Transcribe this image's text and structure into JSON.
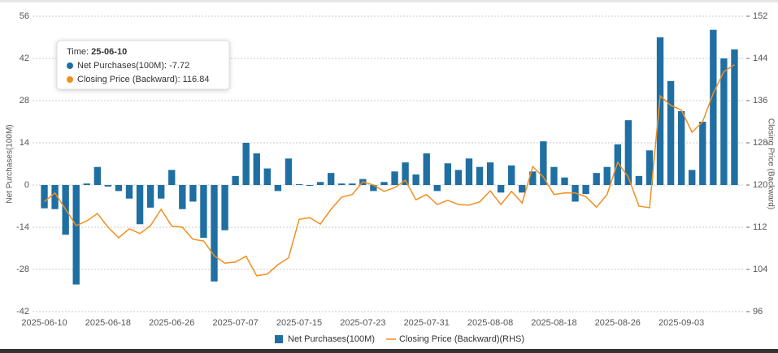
{
  "chart_data": {
    "type": "bar_line",
    "y_label": "Net Purchases(100M)",
    "y2_label": "Closing Price (Backward)",
    "categories": [
      "2025-06-10",
      null,
      null,
      null,
      null,
      null,
      "2025-06-18",
      null,
      null,
      null,
      null,
      null,
      "2025-06-26",
      null,
      null,
      null,
      null,
      null,
      "2025-07-07",
      null,
      null,
      null,
      null,
      null,
      "2025-07-15",
      null,
      null,
      null,
      null,
      null,
      "2025-07-23",
      null,
      null,
      null,
      null,
      null,
      "2025-07-31",
      null,
      null,
      null,
      null,
      null,
      "2025-08-08",
      null,
      null,
      null,
      null,
      null,
      "2025-08-18",
      null,
      null,
      null,
      null,
      null,
      "2025-08-26",
      null,
      null,
      null,
      null,
      null,
      "2025-09-03",
      null,
      null,
      null,
      null,
      null
    ],
    "series": [
      {
        "name": "Net Purchases(100M)",
        "type": "bar",
        "color": "#1f6fa3",
        "values": [
          -7.72,
          -8,
          -16.5,
          -33,
          0.5,
          6,
          -0.5,
          -2,
          -4.5,
          -13,
          -7.5,
          -4.5,
          5,
          -8,
          -5.5,
          -17.5,
          -32,
          -15,
          3,
          14,
          10.5,
          5.5,
          -2,
          8.8,
          0.3,
          -0.3,
          1,
          4,
          0.5,
          0.5,
          2,
          -2,
          1,
          4.5,
          7.5,
          3.5,
          10.5,
          -2,
          7.2,
          5,
          8.8,
          6,
          7.5,
          -2.5,
          6.5,
          -2.5,
          4.5,
          14.5,
          6,
          2.5,
          -5.5,
          -3,
          4,
          6,
          13.5,
          21.5,
          3,
          11.5,
          49,
          34.5,
          24.5,
          5,
          21,
          51.5,
          42,
          45
        ]
      },
      {
        "name": "Closing Price (Backward)(RHS)",
        "type": "line",
        "axis": "y2",
        "color": "#f28e1c",
        "values": [
          116.84,
          118.5,
          115.4,
          112.3,
          113.2,
          114.6,
          112,
          110,
          111.7,
          110.8,
          112.3,
          115.4,
          112.2,
          112,
          109.7,
          109.4,
          106.6,
          105.2,
          105.4,
          106.5,
          102.8,
          103.1,
          104.9,
          106.2,
          113.5,
          113.8,
          112.6,
          115.4,
          117.7,
          118.2,
          120.6,
          120,
          118.8,
          119.5,
          120.9,
          117.2,
          118.2,
          116.3,
          117.1,
          116.3,
          116.2,
          116.8,
          118.9,
          116.3,
          118.8,
          116.6,
          123.5,
          121.5,
          118.2,
          118.5,
          118.5,
          117.8,
          115.8,
          118.2,
          124.3,
          121.5,
          116,
          115.7,
          136.9,
          135.1,
          134.2,
          130,
          132,
          137.4,
          141.5,
          142.8
        ]
      }
    ],
    "ylim": [
      -42,
      56
    ],
    "yticks": [
      -42,
      -28,
      -14,
      0,
      14,
      28,
      42,
      56
    ],
    "y2lim": [
      96,
      152
    ],
    "y2ticks": [
      96,
      104,
      112,
      120,
      128,
      136,
      144,
      152
    ],
    "grid": true,
    "legend": "bottom",
    "tooltip": {
      "label": "Time:",
      "time": "25-06-10",
      "rows": [
        "Net Purchases(100M):",
        "Closing Price (Backward):"
      ]
    }
  }
}
